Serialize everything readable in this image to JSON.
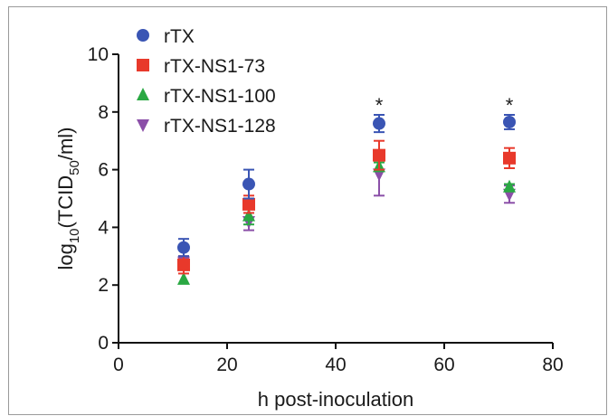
{
  "chart_data": {
    "type": "scatter",
    "xlabel": "h post-inoculation",
    "ylabel": {
      "base": "log",
      "sub1": "10",
      "mid": "(TCID",
      "sub2": "50",
      "end": "/ml)"
    },
    "xlim": [
      0,
      80
    ],
    "ylim": [
      0,
      10
    ],
    "xticks": [
      0,
      20,
      40,
      60,
      80
    ],
    "yticks": [
      0,
      2,
      4,
      6,
      8,
      10
    ],
    "legend_position": "top-left",
    "series": [
      {
        "name": "rTX",
        "marker": "circle",
        "color": "#3a55b4",
        "points": [
          {
            "x": 12,
            "y": 3.3,
            "err": 0.3
          },
          {
            "x": 24,
            "y": 5.5,
            "err": 0.5
          },
          {
            "x": 48,
            "y": 7.6,
            "err": 0.3
          },
          {
            "x": 72,
            "y": 7.65,
            "err": 0.25
          }
        ]
      },
      {
        "name": "rTX-NS1-73",
        "marker": "square",
        "color": "#e8392b",
        "points": [
          {
            "x": 12,
            "y": 2.7,
            "err": 0.3
          },
          {
            "x": 24,
            "y": 4.8,
            "err": 0.3
          },
          {
            "x": 48,
            "y": 6.5,
            "err": 0.5
          },
          {
            "x": 72,
            "y": 6.4,
            "err": 0.35
          }
        ]
      },
      {
        "name": "rTX-NS1-100",
        "marker": "triangle-up",
        "color": "#2aa843",
        "points": [
          {
            "x": 12,
            "y": 2.2,
            "err": 0.0
          },
          {
            "x": 24,
            "y": 4.4,
            "err": 0.3
          },
          {
            "x": 48,
            "y": 6.1,
            "err": 0.15
          },
          {
            "x": 72,
            "y": 5.4,
            "err": 0.1
          }
        ]
      },
      {
        "name": "rTX-NS1-128",
        "marker": "triangle-down",
        "color": "#8b4fa8",
        "points": [
          {
            "x": 12,
            "y": 2.8,
            "err": 0.2
          },
          {
            "x": 24,
            "y": 4.2,
            "err": 0.3
          },
          {
            "x": 48,
            "y": 5.85,
            "err": 0.75
          },
          {
            "x": 72,
            "y": 5.15,
            "err": 0.3
          }
        ]
      }
    ],
    "annotations": [
      {
        "x": 48,
        "y": 8.25,
        "text": "*"
      },
      {
        "x": 72,
        "y": 8.25,
        "text": "*"
      }
    ]
  }
}
